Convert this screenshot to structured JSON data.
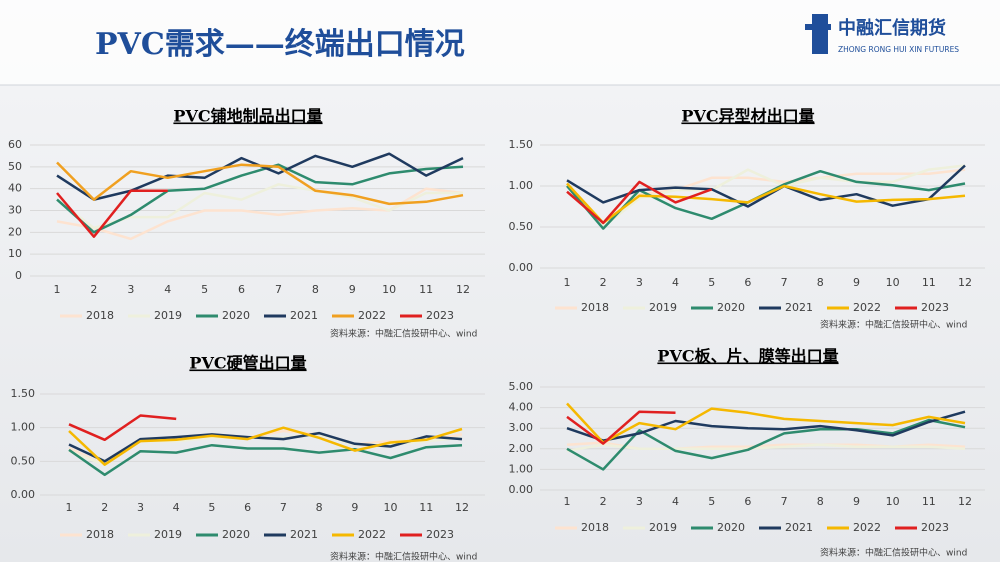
{
  "title": "PVC需求——终端出口情况",
  "logo": {
    "name": "中融汇信期货",
    "sub": "ZHONG RONG HUI XIN FUTURES"
  },
  "chart_data": [
    {
      "type": "line",
      "title": "PVC铺地制品出口量",
      "source": "资料来源：中融汇信投研中心、wind",
      "categories": [
        "1",
        "2",
        "3",
        "4",
        "5",
        "6",
        "7",
        "8",
        "9",
        "10",
        "11",
        "12"
      ],
      "ylim": [
        0,
        60
      ],
      "yticks": [
        0,
        10,
        20,
        30,
        40,
        50,
        60
      ],
      "series": [
        {
          "name": "2018",
          "color": "#fde3d0",
          "values": [
            25,
            22,
            17,
            25,
            30,
            30,
            28,
            30,
            31,
            30,
            40,
            38
          ]
        },
        {
          "name": "2019",
          "color": "#eef0dc",
          "values": [
            35,
            22,
            27,
            27,
            38,
            35,
            42,
            39,
            36,
            30,
            38,
            38
          ]
        },
        {
          "name": "2020",
          "color": "#2e8b6e",
          "values": [
            35,
            20,
            28,
            39,
            40,
            46,
            51,
            43,
            42,
            47,
            49,
            50
          ]
        },
        {
          "name": "2021",
          "color": "#1f3a5f",
          "values": [
            46,
            35,
            39,
            46,
            45,
            54,
            47,
            55,
            50,
            56,
            46,
            54
          ]
        },
        {
          "name": "2022",
          "color": "#f0a020",
          "values": [
            52,
            35,
            48,
            45,
            48,
            51,
            50,
            39,
            37,
            33,
            34,
            37
          ]
        },
        {
          "name": "2023",
          "color": "#e02020",
          "values": [
            38,
            18,
            39,
            39,
            null,
            null,
            null,
            null,
            null,
            null,
            null,
            null
          ]
        }
      ]
    },
    {
      "type": "line",
      "title": "PVC异型材出口量",
      "source": "资料来源：中融汇信投研中心、wind",
      "categories": [
        "1",
        "2",
        "3",
        "4",
        "5",
        "6",
        "7",
        "8",
        "9",
        "10",
        "11",
        "12"
      ],
      "ylim": [
        0,
        1.5
      ],
      "yticks": [
        {
          "value": 0,
          "label": "0.00"
        },
        {
          "value": 0.5,
          "label": "0.50"
        },
        {
          "value": 1,
          "label": "1.00"
        },
        {
          "value": 1.5,
          "label": "1.50"
        }
      ],
      "series": [
        {
          "name": "2018",
          "color": "#fde3d0",
          "values": [
            1.0,
            0.55,
            0.9,
            0.95,
            1.1,
            1.1,
            1.05,
            1.1,
            1.15,
            1.15,
            1.15,
            1.2
          ]
        },
        {
          "name": "2019",
          "color": "#eef0dc",
          "values": [
            1.0,
            0.5,
            0.85,
            0.95,
            0.95,
            1.2,
            1.0,
            1.1,
            1.05,
            1.05,
            1.2,
            1.25
          ]
        },
        {
          "name": "2020",
          "color": "#2e8b6e",
          "values": [
            1.0,
            0.48,
            0.95,
            0.73,
            0.6,
            0.8,
            1.02,
            1.18,
            1.05,
            1.01,
            0.95,
            1.03
          ]
        },
        {
          "name": "2021",
          "color": "#1f3a5f",
          "values": [
            1.07,
            0.8,
            0.95,
            0.98,
            0.96,
            0.75,
            1.0,
            0.83,
            0.9,
            0.76,
            0.84,
            1.25
          ]
        },
        {
          "name": "2022",
          "color": "#f5b800",
          "values": [
            1.03,
            0.55,
            0.88,
            0.87,
            0.84,
            0.8,
            1.0,
            0.9,
            0.81,
            0.83,
            0.84,
            0.88
          ]
        },
        {
          "name": "2023",
          "color": "#e02020",
          "values": [
            0.93,
            0.55,
            1.05,
            0.8,
            0.96,
            null,
            null,
            null,
            null,
            null,
            null,
            null
          ]
        }
      ]
    },
    {
      "type": "line",
      "title": "PVC硬管出口量",
      "source": "资料来源：中融汇信投研中心、wind",
      "categories": [
        "1",
        "2",
        "3",
        "4",
        "5",
        "6",
        "7",
        "8",
        "9",
        "10",
        "11",
        "12"
      ],
      "ylim": [
        0,
        1.5
      ],
      "yticks": [
        {
          "value": 0,
          "label": "0.00"
        },
        {
          "value": 0.5,
          "label": "0.50"
        },
        {
          "value": 1,
          "label": "1.00"
        },
        {
          "value": 1.5,
          "label": "1.50"
        }
      ],
      "series": [
        {
          "name": "2018",
          "color": "#fde3d0",
          "values": [
            0.7,
            0.45,
            0.8,
            0.85,
            0.85,
            0.85,
            0.95,
            0.9,
            0.75,
            0.8,
            0.8,
            0.9
          ]
        },
        {
          "name": "2019",
          "color": "#eef0dc",
          "values": [
            0.65,
            0.45,
            0.8,
            0.8,
            0.85,
            0.85,
            0.85,
            0.9,
            0.75,
            0.75,
            0.8,
            0.85
          ]
        },
        {
          "name": "2020",
          "color": "#2e8b6e",
          "values": [
            0.67,
            0.3,
            0.65,
            0.63,
            0.74,
            0.69,
            0.69,
            0.63,
            0.68,
            0.55,
            0.71,
            0.74
          ]
        },
        {
          "name": "2021",
          "color": "#1f3a5f",
          "values": [
            0.75,
            0.5,
            0.83,
            0.86,
            0.9,
            0.86,
            0.83,
            0.92,
            0.76,
            0.72,
            0.87,
            0.83
          ]
        },
        {
          "name": "2022",
          "color": "#f5b800",
          "values": [
            0.95,
            0.45,
            0.8,
            0.82,
            0.88,
            0.83,
            1.0,
            0.85,
            0.66,
            0.78,
            0.82,
            0.98
          ]
        },
        {
          "name": "2023",
          "color": "#e02020",
          "values": [
            1.05,
            0.82,
            1.18,
            1.13,
            null,
            null,
            null,
            null,
            null,
            null,
            null,
            null
          ]
        }
      ]
    },
    {
      "type": "line",
      "title": "PVC板、片、膜等出口量",
      "source": "资料来源：中融汇信投研中心、wind",
      "categories": [
        "1",
        "2",
        "3",
        "4",
        "5",
        "6",
        "7",
        "8",
        "9",
        "10",
        "11",
        "12"
      ],
      "ylim": [
        0,
        5
      ],
      "yticks": [
        {
          "value": 0,
          "label": "0.00"
        },
        {
          "value": 1,
          "label": "1.00"
        },
        {
          "value": 2,
          "label": "2.00"
        },
        {
          "value": 3,
          "label": "3.00"
        },
        {
          "value": 4,
          "label": "4.00"
        },
        {
          "value": 5,
          "label": "5.00"
        }
      ],
      "series": [
        {
          "name": "2018",
          "color": "#fde3d0",
          "values": [
            2.2,
            2.3,
            2.0,
            2.0,
            2.1,
            2.1,
            2.2,
            2.2,
            2.2,
            2.1,
            2.2,
            2.1
          ]
        },
        {
          "name": "2019",
          "color": "#eef0dc",
          "values": [
            1.9,
            2.2,
            2.0,
            2.0,
            2.0,
            2.0,
            2.1,
            2.2,
            2.1,
            2.1,
            2.1,
            2.0
          ]
        },
        {
          "name": "2020",
          "color": "#2e8b6e",
          "values": [
            2.0,
            1.0,
            2.9,
            1.9,
            1.55,
            1.95,
            2.75,
            2.95,
            2.95,
            2.75,
            3.4,
            3.05
          ]
        },
        {
          "name": "2021",
          "color": "#1f3a5f",
          "values": [
            3.0,
            2.4,
            2.75,
            3.35,
            3.1,
            3.0,
            2.95,
            3.1,
            2.9,
            2.65,
            3.3,
            3.8
          ]
        },
        {
          "name": "2022",
          "color": "#f5b800",
          "values": [
            4.2,
            2.3,
            3.25,
            2.95,
            3.95,
            3.75,
            3.45,
            3.35,
            3.25,
            3.15,
            3.55,
            3.25
          ]
        },
        {
          "name": "2023",
          "color": "#e02020",
          "values": [
            3.55,
            2.25,
            3.8,
            3.75,
            null,
            null,
            null,
            null,
            null,
            null,
            null,
            null
          ]
        }
      ]
    }
  ]
}
